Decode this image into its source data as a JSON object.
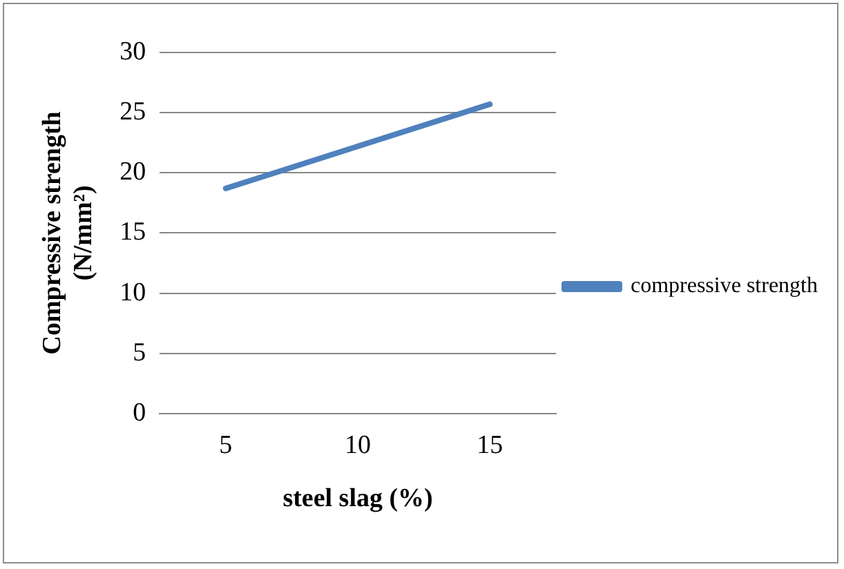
{
  "chart_data": {
    "type": "line",
    "xlabel": "steel slag (%)",
    "ylabel": "Compressive strength (N/mm²)",
    "categories": [
      "5",
      "10",
      "15"
    ],
    "series": [
      {
        "name": "compressive strength",
        "color": "#4f81bd",
        "values": [
          18.7,
          22.2,
          25.7
        ]
      }
    ],
    "ylim": [
      0,
      30
    ],
    "yticks": [
      0,
      5,
      10,
      15,
      20,
      25,
      30
    ],
    "grid": "y",
    "legend": "right",
    "marker": "none"
  }
}
